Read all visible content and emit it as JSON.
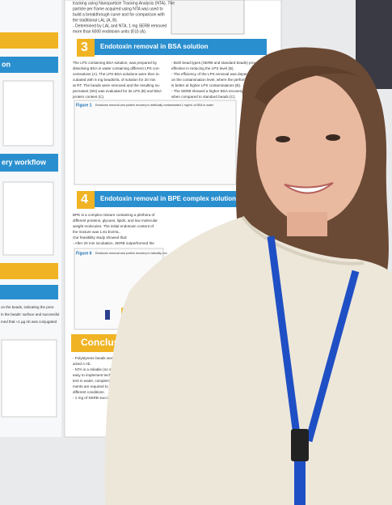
{
  "left_panel": {
    "headings": [
      "on",
      "ery workflow"
    ],
    "text": [
      "on the beads, indicating the pres-",
      "in the beads' surface and successful",
      "med that ≈1 µg Ab was conjugated"
    ]
  },
  "top_text": [
    "tracking using Nanoparticle Tracking Analysis (NTA). The",
    "particle per frame acquired using NTA was used to",
    "build a breakthrough curve and for comparison with",
    "the traditional LAL (A, B).",
    "- Determined by LAL and NTA, 1 mg SERB removed",
    "more than 6000 endotoxin units (EU) (A)."
  ],
  "section_3": {
    "number": "3",
    "title": "Endotoxin removal in BSA solution",
    "paragraph": [
      "The LPS containing BSA solution, was prepared by",
      "dissolving BSA in water containing different LPS con-",
      "centrations (A). The LPS-BSA solutions were then in-",
      "cubated with 5 mg beads/mL of solution for 20 min",
      "at RT. The beads were removed and the resulting su-",
      "pernatant (SN) was evaluated for its LPS (B) and BSA",
      "protein content (C)."
    ],
    "bullets": [
      "- Both bead types (SERB and standard beads) proved",
      "effective in reducing the LPS level (B).",
      "- The efficiency of the LPS removal was dependent",
      "on the contamination level, where the performance",
      "is better at higher LPS contaminations (B).",
      "- The SERB showed a higher BSA recovery i",
      "when compared to standard beads (C)."
    ],
    "figure": "Figure 1",
    "figure_caption": "Endotoxin removal and protein recovery in artificially contaminated 1 mg/mL of BSA in water"
  },
  "section_4": {
    "number": "4",
    "title": "Endotoxin removal in BPE complex solution",
    "paragraph": [
      "BPE is a complex mixture containing a plethora of",
      "different proteins, glycans, lipids, and low molecular",
      "weight molecules. The initial endotoxin content of",
      "the mixture was 1.81 EU/mL.",
      "Our feasibility study showed that:",
      "- After 20 min incubation, SERB outperformed the"
    ],
    "figure": "Figure 6",
    "figure_caption": "Endotoxin removal and protein recovery in naturally con"
  },
  "conclusion": {
    "title": "Conclusio",
    "lines": [
      "- Polystyrene beads were succe",
      "aized A Ab.",
      "- NTA is a reliable (no sample",
      "easy to implement techniqu",
      "tent in water, complemen",
      "ments are required to evalu",
      "different conditions.",
      "- 1 mg of SERB successfull"
    ]
  }
}
